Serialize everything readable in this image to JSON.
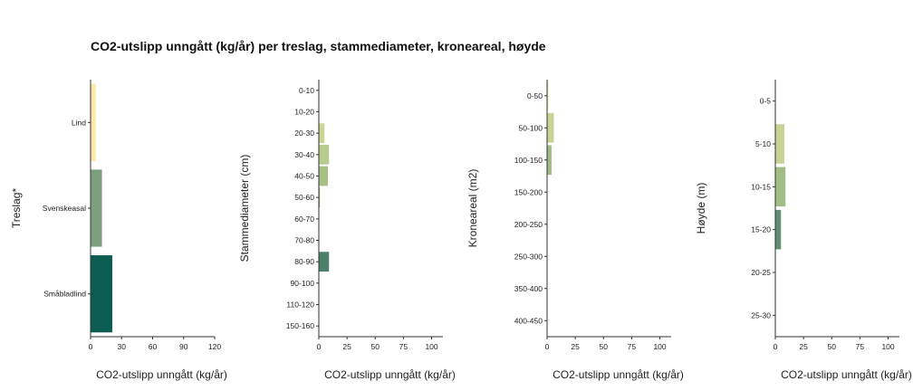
{
  "title": "CO2-utslipp unngått (kg/år) per treslag, stammediameter, kroneareal, høyde",
  "chart_data": [
    {
      "type": "bar",
      "orientation": "horizontal",
      "ylabel": "Treslag*",
      "xlabel": "CO2-utslipp unngått (kg/år)",
      "xlim": [
        0,
        120
      ],
      "xticks": [
        0,
        30,
        60,
        90,
        120
      ],
      "categories": [
        "Lind",
        "Svenskeasal",
        "Småbladlind"
      ],
      "values": [
        5,
        11,
        21
      ],
      "colors": [
        "#fdeaa8",
        "#7d9f7d",
        "#0a5d50"
      ]
    },
    {
      "type": "bar",
      "orientation": "horizontal",
      "ylabel": "Stammediameter (cm)",
      "xlabel": "CO2-utslipp unngått (kg/år)",
      "xlim": [
        0,
        110
      ],
      "xticks": [
        0,
        25,
        50,
        75,
        100
      ],
      "categories": [
        "0-10",
        "10-20",
        "20-30",
        "30-40",
        "40-50",
        "50-60",
        "60-70",
        "70-80",
        "80-90",
        "90-100",
        "110-120",
        "150-160"
      ],
      "values": [
        0,
        0,
        5,
        9,
        8,
        1,
        0,
        0,
        9,
        0,
        0,
        0
      ],
      "colors": [
        "#fdeaa8",
        "#f3e7a6",
        "#ccd596",
        "#b8cb8f",
        "#a6c086",
        "#96b382",
        "#86a87e",
        "#6f9878",
        "#4b7f6a",
        "#2f6f5d",
        "#1a6455",
        "#0a5d50"
      ]
    },
    {
      "type": "bar",
      "orientation": "horizontal",
      "ylabel": "Kroneareal (m2)",
      "xlabel": "CO2-utslipp unngått (kg/år)",
      "xlim": [
        0,
        110
      ],
      "xticks": [
        0,
        25,
        50,
        75,
        100
      ],
      "categories": [
        "0-50",
        "50-100",
        "100-150",
        "150-200",
        "200-250",
        "250-300",
        "350-400",
        "400-450"
      ],
      "values": [
        1,
        6,
        4,
        0,
        0,
        0,
        0,
        0
      ],
      "colors": [
        "#f4ea9a",
        "#c8d396",
        "#a2bc86",
        "#86a87e",
        "#6f9878",
        "#4b7f6a",
        "#2f6f5d",
        "#0a5d50"
      ]
    },
    {
      "type": "bar",
      "orientation": "horizontal",
      "ylabel": "Høyde (m)",
      "xlabel": "CO2-utslipp unngått (kg/år)",
      "xlim": [
        0,
        110
      ],
      "xticks": [
        0,
        25,
        50,
        75,
        100
      ],
      "categories": [
        "0-5",
        "5-10",
        "10-15",
        "15-20",
        "20-25",
        "25-30"
      ],
      "values": [
        0,
        8,
        9,
        5,
        0,
        0
      ],
      "colors": [
        "#fdeaa8",
        "#c8d396",
        "#a2bc86",
        "#5e8f70",
        "#2f6f5d",
        "#0a5d50"
      ]
    }
  ]
}
